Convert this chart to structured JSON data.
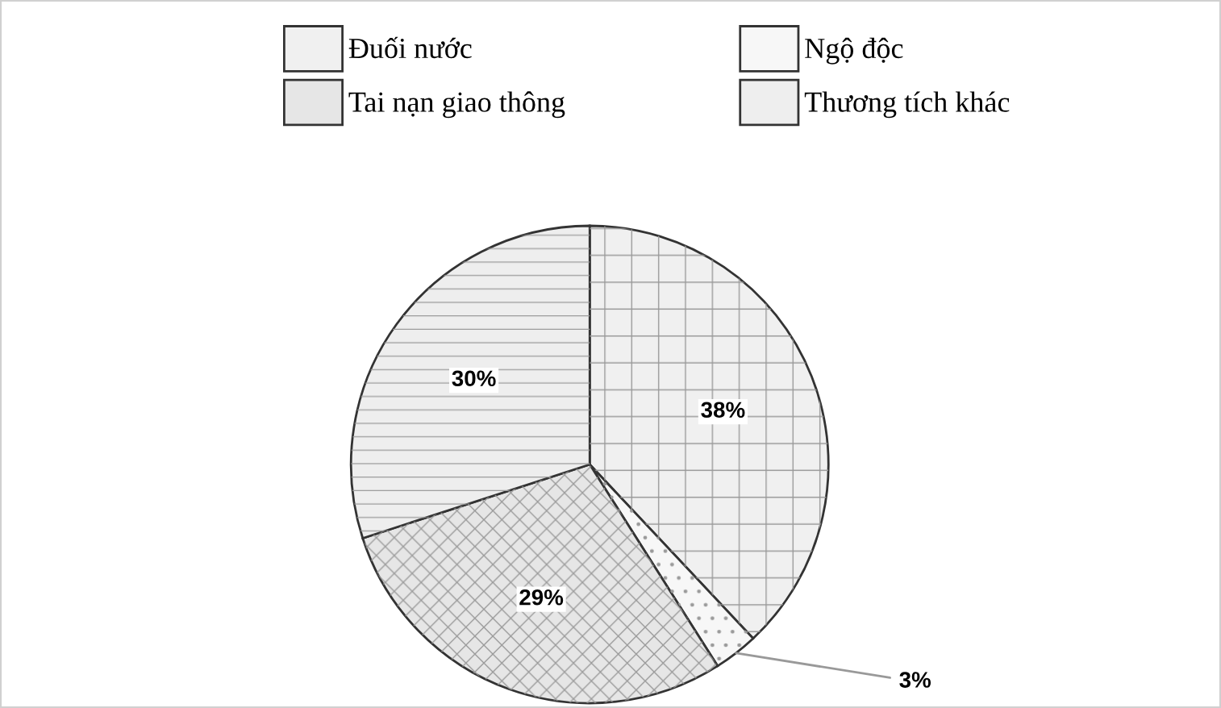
{
  "chart_data": {
    "type": "pie",
    "categories": [
      "Đuối nước",
      "Ngộ độc",
      "Tai nạn giao thông",
      "Thương tích khác"
    ],
    "values": [
      38,
      3,
      29,
      30
    ],
    "colors": [
      "#f0f0f0",
      "#f7f7f7",
      "#e6e6e6",
      "#eeeeee"
    ],
    "value_labels": [
      "38%",
      "3%",
      "29%",
      "30%"
    ],
    "legend": "top"
  }
}
